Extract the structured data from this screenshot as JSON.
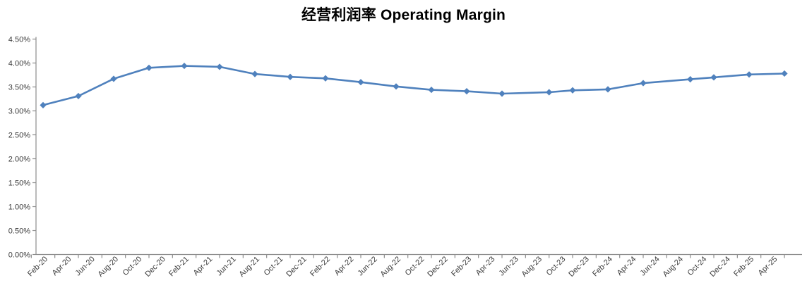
{
  "chart_data": {
    "type": "line",
    "title": "经营利润率 Operating Margin",
    "xlabel": "",
    "ylabel": "",
    "unit": "percent",
    "ylim": [
      0,
      4.5
    ],
    "y_tick_step": 0.5,
    "y_tick_labels": [
      "0.00%",
      "0.50%",
      "1.00%",
      "1.50%",
      "2.00%",
      "2.50%",
      "3.00%",
      "3.50%",
      "4.00%",
      "4.50%"
    ],
    "x_tick_labels": [
      "Feb-20",
      "Apr-20",
      "Jun-20",
      "Aug-20",
      "Oct-20",
      "Dec-20",
      "Feb-21",
      "Apr-21",
      "Jun-21",
      "Aug-21",
      "Oct-21",
      "Dec-21",
      "Feb-22",
      "Apr-22",
      "Jun-22",
      "Aug-22",
      "Oct-22",
      "Dec-22",
      "Feb-23",
      "Apr-23",
      "Jun-23",
      "Aug-23",
      "Oct-23",
      "Dec-23",
      "Feb-24",
      "Apr-24",
      "Jun-24",
      "Aug-24",
      "Oct-24",
      "Dec-24",
      "Feb-25",
      "Apr-25"
    ],
    "months_per_x_label": 2,
    "grid": false,
    "legend": null,
    "line_color": "#4F81BD",
    "axis_color": "#8c8c8c",
    "marker": "diamond",
    "series": [
      {
        "name": "Operating Margin",
        "points": [
          {
            "date": "Feb-20",
            "month_index": 0,
            "value": 3.12
          },
          {
            "date": "May-20",
            "month_index": 3,
            "value": 3.31
          },
          {
            "date": "Aug-20",
            "month_index": 6,
            "value": 3.67
          },
          {
            "date": "Nov-20",
            "month_index": 9,
            "value": 3.9
          },
          {
            "date": "Feb-21",
            "month_index": 12,
            "value": 3.94
          },
          {
            "date": "May-21",
            "month_index": 15,
            "value": 3.92
          },
          {
            "date": "Aug-21",
            "month_index": 18,
            "value": 3.77
          },
          {
            "date": "Nov-21",
            "month_index": 21,
            "value": 3.71
          },
          {
            "date": "Feb-22",
            "month_index": 24,
            "value": 3.68
          },
          {
            "date": "May-22",
            "month_index": 27,
            "value": 3.6
          },
          {
            "date": "Aug-22",
            "month_index": 30,
            "value": 3.51
          },
          {
            "date": "Nov-22",
            "month_index": 33,
            "value": 3.44
          },
          {
            "date": "Feb-23",
            "month_index": 36,
            "value": 3.41
          },
          {
            "date": "May-23",
            "month_index": 39,
            "value": 3.36
          },
          {
            "date": "Sep-23",
            "month_index": 43,
            "value": 3.39
          },
          {
            "date": "Nov-23",
            "month_index": 45,
            "value": 3.43
          },
          {
            "date": "Feb-24",
            "month_index": 48,
            "value": 3.45
          },
          {
            "date": "May-24",
            "month_index": 51,
            "value": 3.58
          },
          {
            "date": "Sep-24",
            "month_index": 55,
            "value": 3.66
          },
          {
            "date": "Nov-24",
            "month_index": 57,
            "value": 3.7
          },
          {
            "date": "Feb-25",
            "month_index": 60,
            "value": 3.76
          },
          {
            "date": "May-25",
            "month_index": 63,
            "value": 3.78
          }
        ]
      }
    ]
  }
}
